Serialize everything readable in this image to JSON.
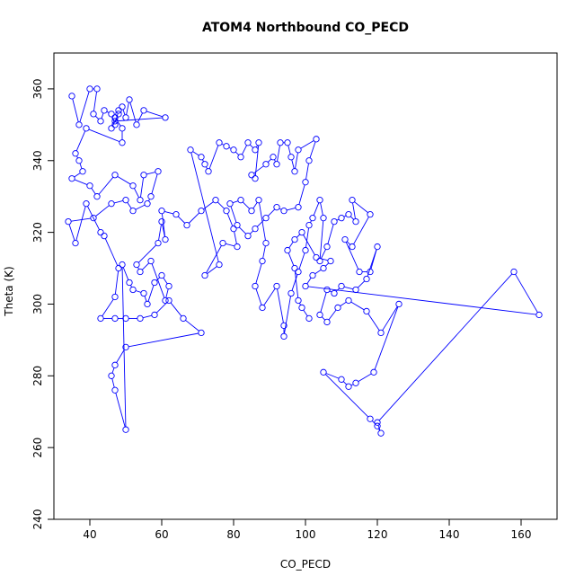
{
  "chart_data": {
    "type": "line",
    "title": "ATOM4 Northbound CO_PECD",
    "xlabel": "CO_PECD",
    "ylabel": "Theta (K)",
    "xlim": [
      30,
      170
    ],
    "ylim": [
      240,
      370
    ],
    "x_ticks": [
      40,
      60,
      80,
      100,
      120,
      140,
      160
    ],
    "y_ticks": [
      240,
      260,
      280,
      300,
      320,
      340,
      360
    ],
    "grid": false,
    "series_color": "#0000ff",
    "markers": "open-circle",
    "points": [
      [
        35,
        358
      ],
      [
        37,
        350
      ],
      [
        40,
        360
      ],
      [
        42,
        360
      ],
      [
        41,
        353
      ],
      [
        43,
        351
      ],
      [
        44,
        354
      ],
      [
        46,
        353
      ],
      [
        47,
        350
      ],
      [
        48,
        354
      ],
      [
        49,
        355
      ],
      [
        50,
        352
      ],
      [
        51,
        357
      ],
      [
        53,
        350
      ],
      [
        55,
        354
      ],
      [
        61,
        352
      ],
      [
        47,
        351
      ],
      [
        46,
        349
      ],
      [
        48,
        353
      ],
      [
        47,
        352
      ],
      [
        49,
        349
      ],
      [
        49,
        345
      ],
      [
        39,
        349
      ],
      [
        36,
        342
      ],
      [
        37,
        340
      ],
      [
        38,
        337
      ],
      [
        35,
        335
      ],
      [
        40,
        333
      ],
      [
        42,
        330
      ],
      [
        47,
        336
      ],
      [
        52,
        333
      ],
      [
        54,
        329
      ],
      [
        55,
        336
      ],
      [
        59,
        337
      ],
      [
        57,
        330
      ],
      [
        56,
        328
      ],
      [
        52,
        326
      ],
      [
        50,
        329
      ],
      [
        46,
        328
      ],
      [
        41,
        324
      ],
      [
        34,
        323
      ],
      [
        36,
        317
      ],
      [
        39,
        328
      ],
      [
        43,
        320
      ],
      [
        44,
        319
      ],
      [
        48,
        310
      ],
      [
        47,
        302
      ],
      [
        43,
        296
      ],
      [
        47,
        296
      ],
      [
        50,
        296
      ],
      [
        54,
        296
      ],
      [
        58,
        297
      ],
      [
        62,
        301
      ],
      [
        66,
        296
      ],
      [
        71,
        292
      ],
      [
        50,
        288
      ],
      [
        47,
        283
      ],
      [
        46,
        280
      ],
      [
        47,
        276
      ],
      [
        50,
        265
      ],
      [
        49,
        311
      ],
      [
        51,
        306
      ],
      [
        52,
        304
      ],
      [
        55,
        303
      ],
      [
        56,
        300
      ],
      [
        58,
        306
      ],
      [
        60,
        308
      ],
      [
        62,
        305
      ],
      [
        61,
        301
      ],
      [
        57,
        312
      ],
      [
        54,
        309
      ],
      [
        53,
        311
      ],
      [
        59,
        317
      ],
      [
        60,
        323
      ],
      [
        61,
        318
      ],
      [
        60,
        326
      ],
      [
        64,
        325
      ],
      [
        67,
        322
      ],
      [
        71,
        326
      ],
      [
        75,
        329
      ],
      [
        78,
        326
      ],
      [
        80,
        321
      ],
      [
        81,
        316
      ],
      [
        77,
        317
      ],
      [
        72,
        308
      ],
      [
        76,
        311
      ],
      [
        68,
        343
      ],
      [
        71,
        341
      ],
      [
        72,
        339
      ],
      [
        73,
        337
      ],
      [
        76,
        345
      ],
      [
        78,
        344
      ],
      [
        80,
        343
      ],
      [
        82,
        341
      ],
      [
        84,
        345
      ],
      [
        86,
        343
      ],
      [
        87,
        345
      ],
      [
        86,
        335
      ],
      [
        85,
        336
      ],
      [
        89,
        339
      ],
      [
        91,
        341
      ],
      [
        92,
        339
      ],
      [
        93,
        345
      ],
      [
        95,
        345
      ],
      [
        96,
        341
      ],
      [
        97,
        337
      ],
      [
        98,
        343
      ],
      [
        103,
        346
      ],
      [
        101,
        340
      ],
      [
        100,
        334
      ],
      [
        98,
        327
      ],
      [
        94,
        326
      ],
      [
        92,
        327
      ],
      [
        89,
        324
      ],
      [
        86,
        321
      ],
      [
        84,
        319
      ],
      [
        81,
        322
      ],
      [
        79,
        328
      ],
      [
        82,
        329
      ],
      [
        85,
        326
      ],
      [
        87,
        329
      ],
      [
        89,
        317
      ],
      [
        88,
        312
      ],
      [
        86,
        305
      ],
      [
        88,
        299
      ],
      [
        92,
        305
      ],
      [
        94,
        294
      ],
      [
        94,
        291
      ],
      [
        96,
        303
      ],
      [
        98,
        309
      ],
      [
        100,
        315
      ],
      [
        101,
        322
      ],
      [
        102,
        324
      ],
      [
        104,
        329
      ],
      [
        105,
        324
      ],
      [
        104,
        312
      ],
      [
        106,
        316
      ],
      [
        108,
        323
      ],
      [
        110,
        324
      ],
      [
        112,
        325
      ],
      [
        114,
        323
      ],
      [
        113,
        329
      ],
      [
        118,
        325
      ],
      [
        113,
        316
      ],
      [
        111,
        318
      ],
      [
        115,
        309
      ],
      [
        118,
        309
      ],
      [
        120,
        316
      ],
      [
        117,
        307
      ],
      [
        114,
        304
      ],
      [
        110,
        305
      ],
      [
        108,
        303
      ],
      [
        106,
        304
      ],
      [
        104,
        297
      ],
      [
        106,
        295
      ],
      [
        109,
        299
      ],
      [
        112,
        301
      ],
      [
        117,
        298
      ],
      [
        121,
        292
      ],
      [
        126,
        300
      ],
      [
        119,
        281
      ],
      [
        114,
        278
      ],
      [
        112,
        277
      ],
      [
        110,
        279
      ],
      [
        105,
        281
      ],
      [
        118,
        268
      ],
      [
        120,
        266
      ],
      [
        121,
        264
      ],
      [
        120,
        267
      ],
      [
        158,
        309
      ],
      [
        165,
        297
      ],
      [
        100,
        305
      ],
      [
        102,
        308
      ],
      [
        105,
        310
      ],
      [
        107,
        312
      ],
      [
        103,
        313
      ],
      [
        99,
        320
      ],
      [
        97,
        318
      ],
      [
        95,
        315
      ],
      [
        97,
        310
      ],
      [
        98,
        301
      ],
      [
        99,
        299
      ],
      [
        101,
        296
      ]
    ]
  }
}
